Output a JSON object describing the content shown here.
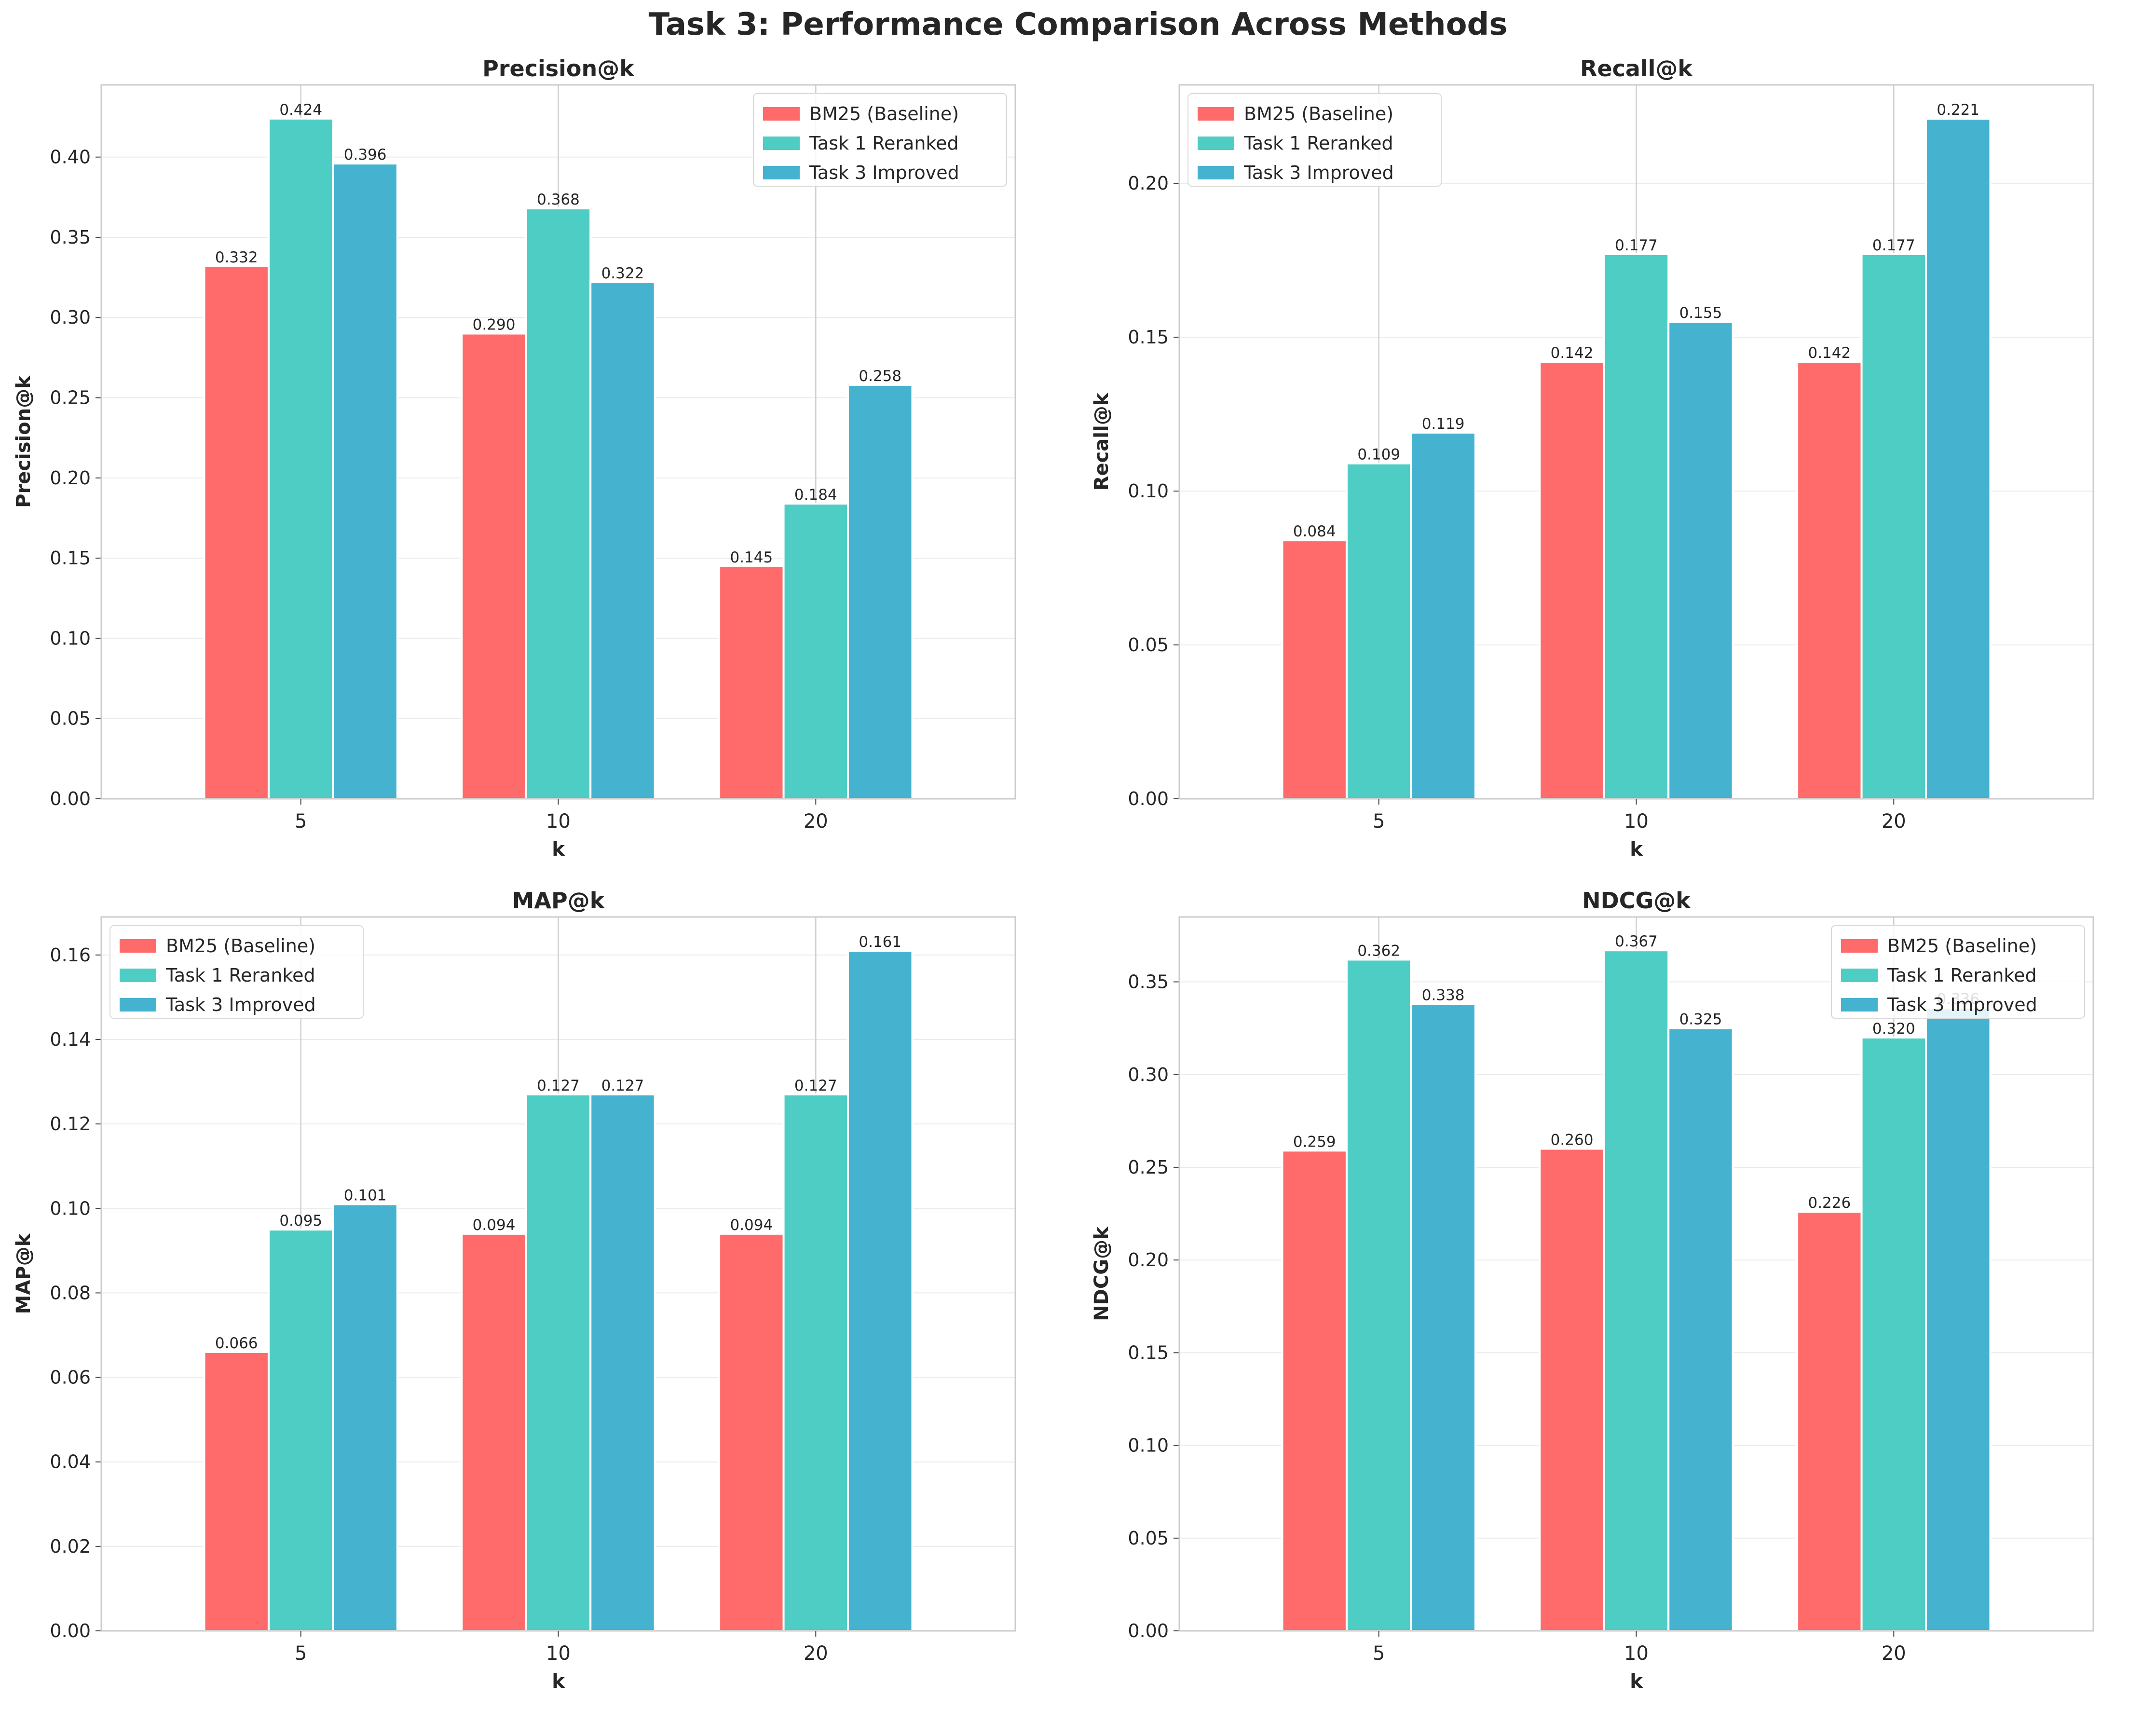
{
  "figure": {
    "title": "Task 3: Performance Comparison Across Methods"
  },
  "colors": {
    "BM25 (Baseline)": "#FF6B6B",
    "Task 1 Reranked": "#4ECDC4",
    "Task 3 Improved": "#45B3D0"
  },
  "chart_data": [
    {
      "type": "bar",
      "title": "Precision@k",
      "xlabel": "k",
      "ylabel": "Precision@k",
      "categories": [
        "5",
        "10",
        "20"
      ],
      "ylim": [
        0,
        0.445
      ],
      "yticks": [
        0.0,
        0.05,
        0.1,
        0.15,
        0.2,
        0.25,
        0.3,
        0.35,
        0.4
      ],
      "grid": true,
      "legend_position": "top-right",
      "series": [
        {
          "name": "BM25 (Baseline)",
          "values": [
            0.332,
            0.29,
            0.145
          ]
        },
        {
          "name": "Task 1 Reranked",
          "values": [
            0.424,
            0.368,
            0.184
          ]
        },
        {
          "name": "Task 3 Improved",
          "values": [
            0.396,
            0.322,
            0.258
          ]
        }
      ]
    },
    {
      "type": "bar",
      "title": "Recall@k",
      "xlabel": "k",
      "ylabel": "Recall@k",
      "categories": [
        "5",
        "10",
        "20"
      ],
      "ylim": [
        0,
        0.232
      ],
      "yticks": [
        0.0,
        0.05,
        0.1,
        0.15,
        0.2
      ],
      "grid": true,
      "legend_position": "top-left",
      "series": [
        {
          "name": "BM25 (Baseline)",
          "values": [
            0.084,
            0.142,
            0.142
          ]
        },
        {
          "name": "Task 1 Reranked",
          "values": [
            0.109,
            0.177,
            0.177
          ]
        },
        {
          "name": "Task 3 Improved",
          "values": [
            0.119,
            0.155,
            0.221
          ]
        }
      ]
    },
    {
      "type": "bar",
      "title": "MAP@k",
      "xlabel": "k",
      "ylabel": "MAP@k",
      "categories": [
        "5",
        "10",
        "20"
      ],
      "ylim": [
        0,
        0.169
      ],
      "yticks": [
        0.0,
        0.02,
        0.04,
        0.06,
        0.08,
        0.1,
        0.12,
        0.14,
        0.16
      ],
      "grid": true,
      "legend_position": "top-left",
      "series": [
        {
          "name": "BM25 (Baseline)",
          "values": [
            0.066,
            0.094,
            0.094
          ]
        },
        {
          "name": "Task 1 Reranked",
          "values": [
            0.095,
            0.127,
            0.127
          ]
        },
        {
          "name": "Task 3 Improved",
          "values": [
            0.101,
            0.127,
            0.161
          ]
        }
      ]
    },
    {
      "type": "bar",
      "title": "NDCG@k",
      "xlabel": "k",
      "ylabel": "NDCG@k",
      "categories": [
        "5",
        "10",
        "20"
      ],
      "ylim": [
        0,
        0.385
      ],
      "yticks": [
        0.0,
        0.05,
        0.1,
        0.15,
        0.2,
        0.25,
        0.3,
        0.35
      ],
      "grid": true,
      "legend_position": "top-right",
      "series": [
        {
          "name": "BM25 (Baseline)",
          "values": [
            0.259,
            0.26,
            0.226
          ]
        },
        {
          "name": "Task 1 Reranked",
          "values": [
            0.362,
            0.367,
            0.32
          ]
        },
        {
          "name": "Task 3 Improved",
          "values": [
            0.338,
            0.325,
            0.336
          ]
        }
      ]
    }
  ]
}
